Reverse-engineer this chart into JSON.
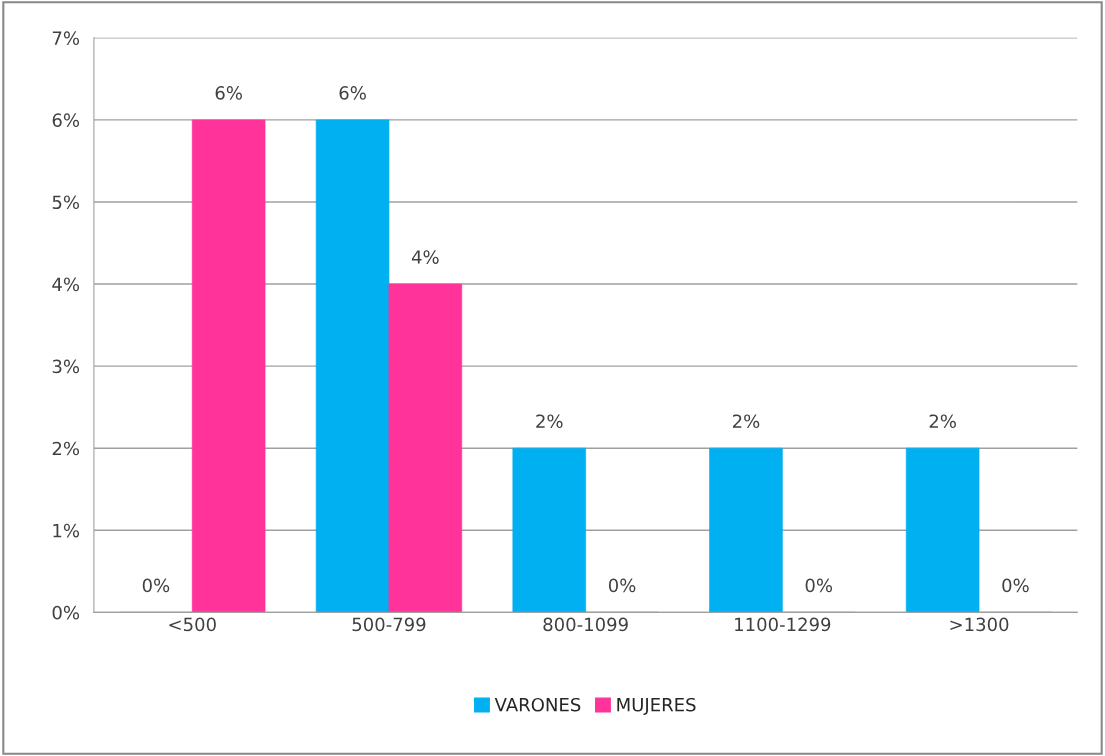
{
  "chart_data": {
    "type": "bar",
    "categories": [
      "<500",
      "500-799",
      "800-1099",
      "1100-1299",
      ">1300"
    ],
    "series": [
      {
        "name": "VARONES",
        "color": "#00b0f0",
        "values": [
          0,
          6,
          2,
          2,
          2
        ],
        "value_labels": [
          "0%",
          "6%",
          "2%",
          "2%",
          "2%"
        ]
      },
      {
        "name": "MUJERES",
        "color": "#ff3399",
        "values": [
          6,
          4,
          0,
          0,
          0
        ],
        "value_labels": [
          "6%",
          "4%",
          "0%",
          "0%",
          "0%"
        ]
      }
    ],
    "ylim": [
      0,
      7
    ],
    "yticks": [
      {
        "value": 0,
        "label": "0%"
      },
      {
        "value": 1,
        "label": "1%"
      },
      {
        "value": 2,
        "label": "2%"
      },
      {
        "value": 3,
        "label": "3%"
      },
      {
        "value": 4,
        "label": "4%"
      },
      {
        "value": 5,
        "label": "5%"
      },
      {
        "value": 6,
        "label": "6%"
      },
      {
        "value": 7,
        "label": "7%"
      }
    ],
    "grid": "y",
    "legend": "bottom"
  }
}
